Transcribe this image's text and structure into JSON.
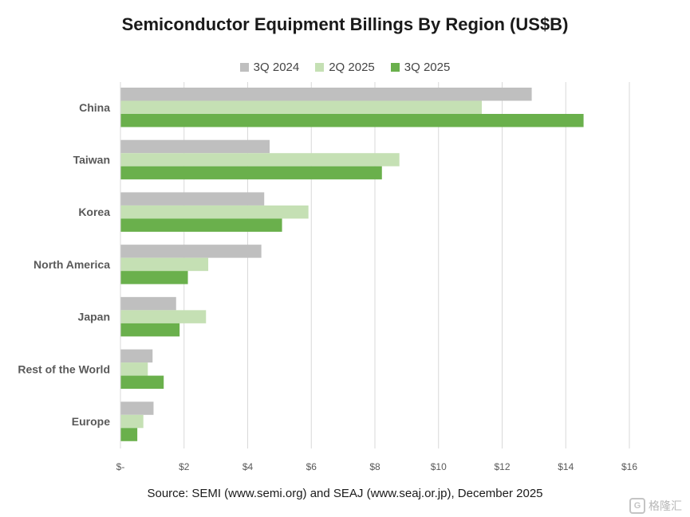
{
  "chart_data": {
    "type": "bar",
    "orientation": "horizontal",
    "title": "Semiconductor Equipment Billings By Region (US$B)",
    "categories": [
      "China",
      "Taiwan",
      "Korea",
      "North America",
      "Japan",
      "Rest of the World",
      "Europe"
    ],
    "series": [
      {
        "name": "3Q 2024",
        "color": "#bfbfbf",
        "values": [
          12.93,
          4.69,
          4.52,
          4.43,
          1.75,
          1.01,
          1.04
        ]
      },
      {
        "name": "2Q 2025",
        "color": "#c5e0b4",
        "values": [
          11.36,
          8.77,
          5.91,
          2.76,
          2.69,
          0.86,
          0.72
        ]
      },
      {
        "name": "3Q 2025",
        "color": "#6ab04c",
        "values": [
          14.56,
          8.22,
          5.08,
          2.12,
          1.86,
          1.36,
          0.53
        ]
      }
    ],
    "xlim": [
      0,
      16
    ],
    "x_ticks": [
      0,
      2,
      4,
      6,
      8,
      10,
      12,
      14,
      16
    ],
    "x_tick_labels": [
      "$-",
      "$2",
      "$4",
      "$6",
      "$8",
      "$10",
      "$12",
      "$14",
      "$16"
    ],
    "grid": "vertical",
    "legend_position": "top",
    "source": "Source: SEMI (www.semi.org) and SEAJ (www.seaj.or.jp), December 2025"
  },
  "watermark": {
    "logo_glyph": "G",
    "text": "格隆汇"
  }
}
